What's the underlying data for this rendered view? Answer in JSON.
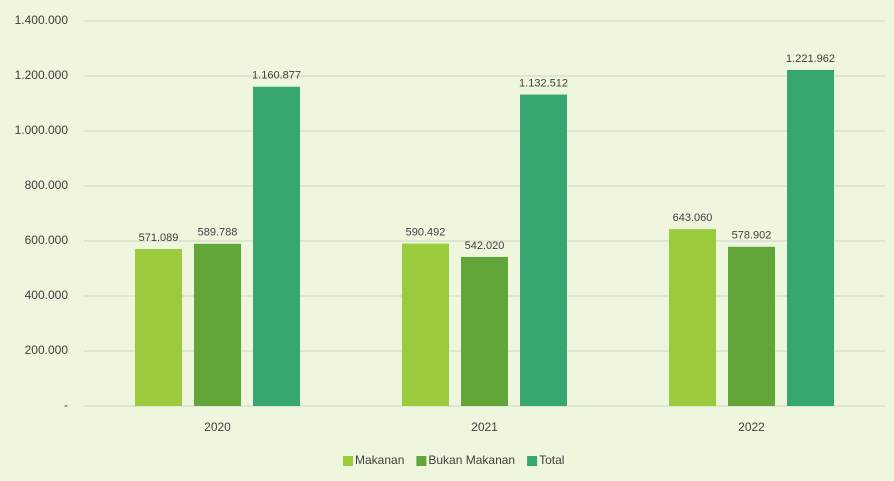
{
  "chart_data": {
    "type": "bar",
    "categories": [
      "2020",
      "2021",
      "2022"
    ],
    "series": [
      {
        "name": "Makanan",
        "color": "#9acb3c",
        "values": [
          571089,
          590492,
          643060
        ],
        "value_labels": [
          "571.089",
          "590.492",
          "643.060"
        ]
      },
      {
        "name": "Bukan Makanan",
        "color": "#62a539",
        "values": [
          589788,
          542020,
          578902
        ],
        "value_labels": [
          "589.788",
          "542.020",
          "578.902"
        ]
      },
      {
        "name": "Total",
        "color": "#36a86f",
        "values": [
          1160877,
          1132512,
          1221962
        ],
        "value_labels": [
          "1.160.877",
          "1.132.512",
          "1.221.962"
        ]
      }
    ],
    "ylim": [
      0,
      1400000
    ],
    "yticks": [
      {
        "value": 0,
        "label": "-"
      },
      {
        "value": 200000,
        "label": "200.000"
      },
      {
        "value": 400000,
        "label": "400.000"
      },
      {
        "value": 600000,
        "label": "600.000"
      },
      {
        "value": 800000,
        "label": "800.000"
      },
      {
        "value": 1000000,
        "label": "1.000.000"
      },
      {
        "value": 1200000,
        "label": "1.200.000"
      },
      {
        "value": 1400000,
        "label": "1.400.000"
      }
    ],
    "grid": true,
    "legend": "bottom"
  }
}
